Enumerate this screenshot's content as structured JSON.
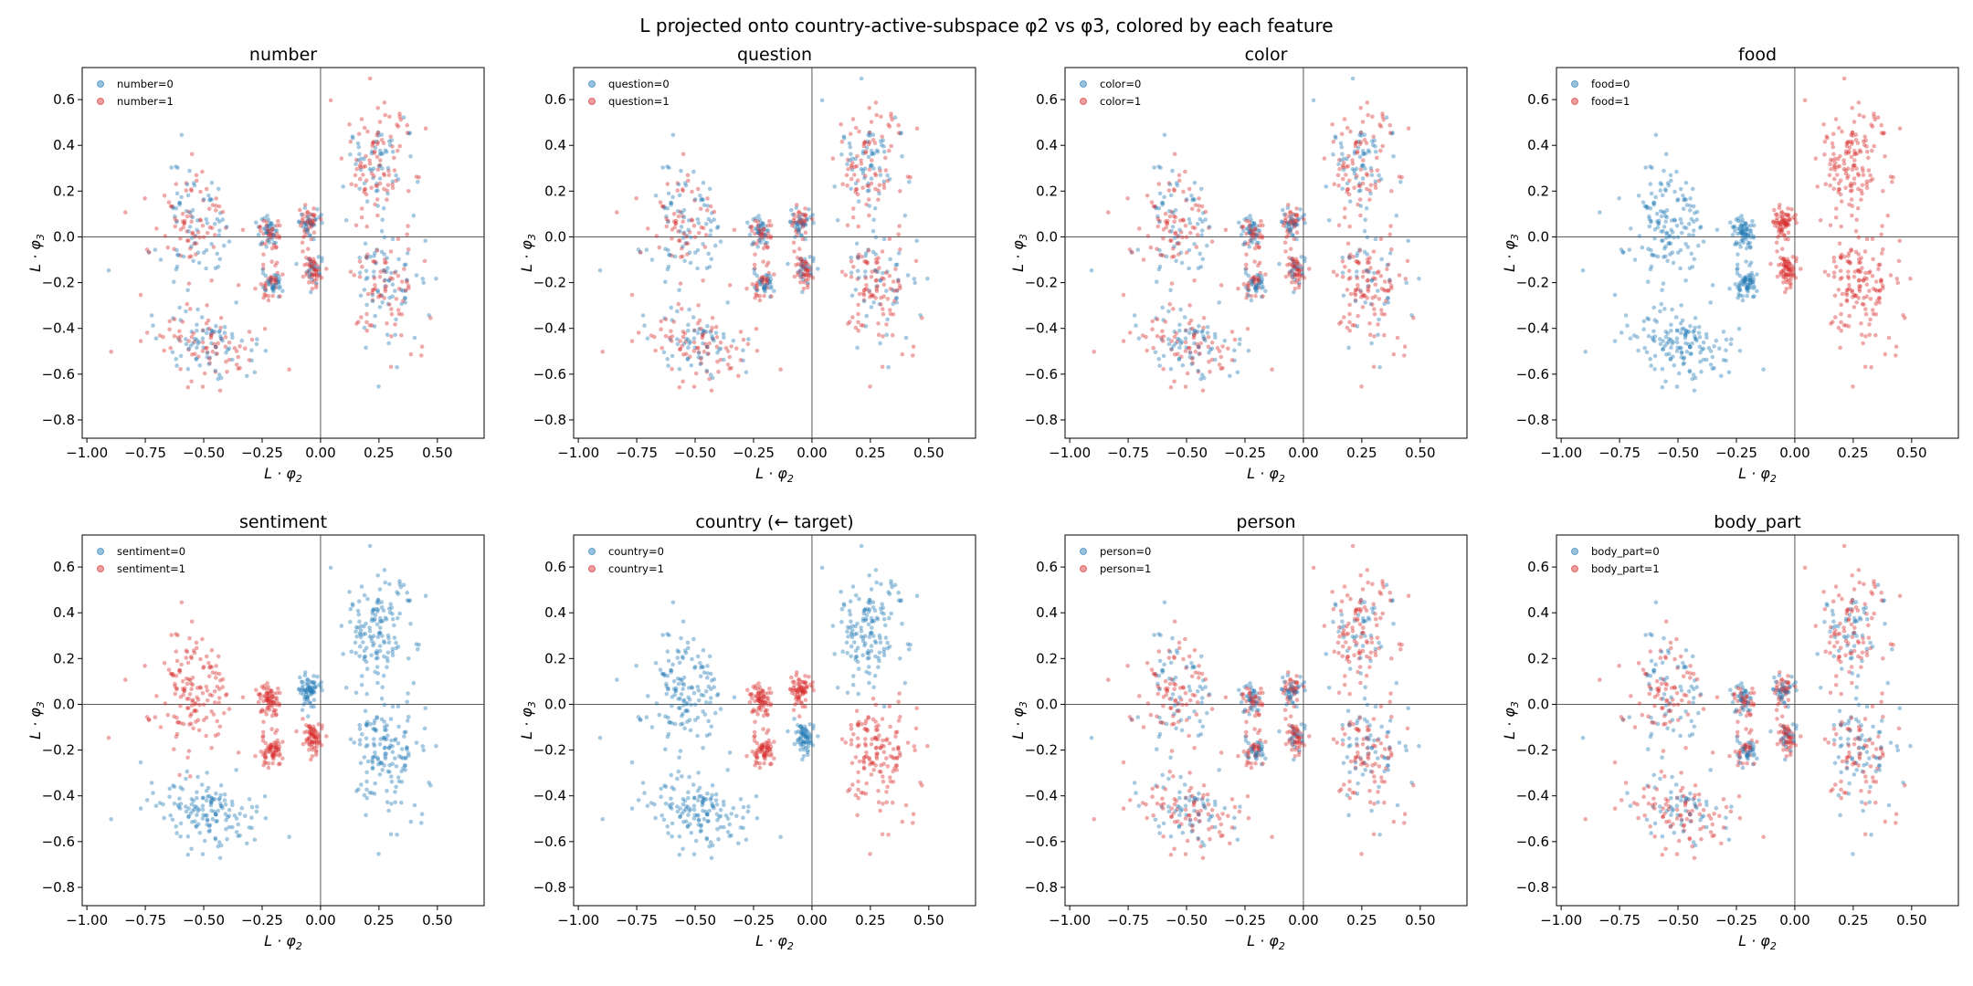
{
  "figure_title": "L projected onto country-active-subspace φ2 vs φ3, colored by each feature",
  "colors": {
    "class0": "#1f77b4",
    "class1": "#d62728",
    "axis": "#000000",
    "zero_line": "#444444"
  },
  "chart_data": [
    {
      "type": "scatter",
      "title": "number",
      "feature": "number",
      "legend": [
        "number=0",
        "number=1"
      ],
      "legend_position": "top-left",
      "xlabel": "L · φ2",
      "ylabel": "L · φ3",
      "xlim": [
        -1.02,
        0.7
      ],
      "ylim": [
        -0.88,
        0.74
      ],
      "xticks": [
        "-1.00",
        "-0.75",
        "-0.50",
        "-0.25",
        "0.00",
        "0.25",
        "0.50"
      ],
      "yticks": [
        "0.6",
        "0.4",
        "0.2",
        "0.0",
        "-0.2",
        "-0.4",
        "-0.6",
        "-0.8"
      ],
      "reference_lines": {
        "x": 0,
        "y": 0
      },
      "grid": false,
      "fraction_class1_by_cluster": [
        0.55,
        0.5,
        0.5,
        0.5,
        0.5,
        0.6,
        0.55,
        0.55
      ]
    },
    {
      "type": "scatter",
      "title": "question",
      "feature": "question",
      "legend": [
        "question=0",
        "question=1"
      ],
      "legend_position": "top-left",
      "xlabel": "L · φ2",
      "ylabel": "L · φ3",
      "xlim": [
        -1.02,
        0.7
      ],
      "ylim": [
        -0.88,
        0.74
      ],
      "xticks": [
        "-1.00",
        "-0.75",
        "-0.50",
        "-0.25",
        "0.00",
        "0.25",
        "0.50"
      ],
      "yticks": [
        "0.6",
        "0.4",
        "0.2",
        "0.0",
        "-0.2",
        "-0.4",
        "-0.6",
        "-0.8"
      ],
      "reference_lines": {
        "x": 0,
        "y": 0
      },
      "grid": false,
      "fraction_class1_by_cluster": [
        0.5,
        0.55,
        0.45,
        0.6,
        0.5,
        0.5,
        0.55,
        0.5
      ]
    },
    {
      "type": "scatter",
      "title": "color",
      "feature": "color",
      "legend": [
        "color=0",
        "color=1"
      ],
      "legend_position": "top-left",
      "xlabel": "L · φ2",
      "ylabel": "L · φ3",
      "xlim": [
        -1.02,
        0.7
      ],
      "ylim": [
        -0.88,
        0.74
      ],
      "xticks": [
        "-1.00",
        "-0.75",
        "-0.50",
        "-0.25",
        "0.00",
        "0.25",
        "0.50"
      ],
      "yticks": [
        "0.6",
        "0.4",
        "0.2",
        "0.0",
        "-0.2",
        "-0.4",
        "-0.6",
        "-0.8"
      ],
      "reference_lines": {
        "x": 0,
        "y": 0
      },
      "grid": false,
      "fraction_class1_by_cluster": [
        0.5,
        0.5,
        0.55,
        0.65,
        0.45,
        0.55,
        0.5,
        0.55
      ]
    },
    {
      "type": "scatter",
      "title": "food",
      "feature": "food",
      "legend": [
        "food=0",
        "food=1"
      ],
      "legend_position": "top-left",
      "xlabel": "L · φ2",
      "ylabel": "L · φ3",
      "xlim": [
        -1.02,
        0.7
      ],
      "ylim": [
        -0.88,
        0.74
      ],
      "xticks": [
        "-1.00",
        "-0.75",
        "-0.50",
        "-0.25",
        "0.00",
        "0.25",
        "0.50"
      ],
      "yticks": [
        "0.6",
        "0.4",
        "0.2",
        "0.0",
        "-0.2",
        "-0.4",
        "-0.6",
        "-0.8"
      ],
      "reference_lines": {
        "x": 0,
        "y": 0
      },
      "grid": false,
      "fraction_class1_by_cluster": [
        1,
        0,
        0,
        1,
        0,
        1,
        0,
        1
      ]
    },
    {
      "type": "scatter",
      "title": "sentiment",
      "feature": "sentiment",
      "legend": [
        "sentiment=0",
        "sentiment=1"
      ],
      "legend_position": "top-left",
      "xlabel": "L · φ2",
      "ylabel": "L · φ3",
      "xlim": [
        -1.02,
        0.7
      ],
      "ylim": [
        -0.88,
        0.74
      ],
      "xticks": [
        "-1.00",
        "-0.75",
        "-0.50",
        "-0.25",
        "0.00",
        "0.25",
        "0.50"
      ],
      "yticks": [
        "0.6",
        "0.4",
        "0.2",
        "0.0",
        "-0.2",
        "-0.4",
        "-0.6",
        "-0.8"
      ],
      "reference_lines": {
        "x": 0,
        "y": 0
      },
      "grid": false,
      "fraction_class1_by_cluster": [
        0,
        0,
        1,
        0,
        1,
        0,
        1,
        1
      ]
    },
    {
      "type": "scatter",
      "title": "country (← target)",
      "feature": "country",
      "legend": [
        "country=0",
        "country=1"
      ],
      "legend_position": "top-left",
      "xlabel": "L · φ2",
      "ylabel": "L · φ3",
      "xlim": [
        -1.02,
        0.7
      ],
      "ylim": [
        -0.88,
        0.74
      ],
      "xticks": [
        "-1.00",
        "-0.75",
        "-0.50",
        "-0.25",
        "0.00",
        "0.25",
        "0.50"
      ],
      "yticks": [
        "0.6",
        "0.4",
        "0.2",
        "0.0",
        "-0.2",
        "-0.4",
        "-0.6",
        "-0.8"
      ],
      "reference_lines": {
        "x": 0,
        "y": 0
      },
      "grid": false,
      "fraction_class1_by_cluster": [
        0,
        0,
        0,
        1,
        1,
        1,
        1,
        0
      ]
    },
    {
      "type": "scatter",
      "title": "person",
      "feature": "person",
      "legend": [
        "person=0",
        "person=1"
      ],
      "legend_position": "top-left",
      "xlabel": "L · φ2",
      "ylabel": "L · φ3",
      "xlim": [
        -1.02,
        0.7
      ],
      "ylim": [
        -0.88,
        0.74
      ],
      "xticks": [
        "-1.00",
        "-0.75",
        "-0.50",
        "-0.25",
        "0.00",
        "0.25",
        "0.50"
      ],
      "yticks": [
        "0.6",
        "0.4",
        "0.2",
        "0.0",
        "-0.2",
        "-0.4",
        "-0.6",
        "-0.8"
      ],
      "reference_lines": {
        "x": 0,
        "y": 0
      },
      "grid": false,
      "fraction_class1_by_cluster": [
        0.6,
        0.55,
        0.6,
        0.55,
        0.55,
        0.5,
        0.6,
        0.6
      ]
    },
    {
      "type": "scatter",
      "title": "body_part",
      "feature": "body_part",
      "legend": [
        "body_part=0",
        "body_part=1"
      ],
      "legend_position": "top-left",
      "xlabel": "L · φ2",
      "ylabel": "L · φ3",
      "xlim": [
        -1.02,
        0.7
      ],
      "ylim": [
        -0.88,
        0.74
      ],
      "xticks": [
        "-1.00",
        "-0.75",
        "-0.50",
        "-0.25",
        "0.00",
        "0.25",
        "0.50"
      ],
      "yticks": [
        "0.6",
        "0.4",
        "0.2",
        "0.0",
        "-0.2",
        "-0.4",
        "-0.6",
        "-0.8"
      ],
      "reference_lines": {
        "x": 0,
        "y": 0
      },
      "grid": false,
      "fraction_class1_by_cluster": [
        0.55,
        0.6,
        0.55,
        0.5,
        0.5,
        0.55,
        0.5,
        0.6
      ]
    }
  ],
  "clusters": [
    {
      "name": "top-right",
      "center": [
        0.24,
        0.33
      ],
      "spread": [
        0.09,
        0.12
      ],
      "tilt": -0.75,
      "count": 150
    },
    {
      "name": "bottom-left",
      "center": [
        -0.5,
        -0.47
      ],
      "spread": [
        0.12,
        0.075
      ],
      "tilt": -0.35,
      "count": 150
    },
    {
      "name": "left",
      "center": [
        -0.56,
        0.06
      ],
      "spread": [
        0.1,
        0.12
      ],
      "tilt": 0.45,
      "count": 150
    },
    {
      "name": "bottom-right",
      "center": [
        0.27,
        -0.22
      ],
      "spread": [
        0.09,
        0.12
      ],
      "tilt": 0.5,
      "count": 150
    },
    {
      "name": "small-upper-left",
      "center": [
        -0.22,
        0.02
      ],
      "spread": [
        0.025,
        0.035
      ],
      "tilt": 0,
      "count": 70
    },
    {
      "name": "small-upper-right",
      "center": [
        -0.05,
        0.06
      ],
      "spread": [
        0.025,
        0.035
      ],
      "tilt": 0,
      "count": 70
    },
    {
      "name": "small-lower-left",
      "center": [
        -0.21,
        -0.2
      ],
      "spread": [
        0.022,
        0.035
      ],
      "tilt": 0,
      "count": 70
    },
    {
      "name": "small-lower-right",
      "center": [
        -0.03,
        -0.15
      ],
      "spread": [
        0.022,
        0.035
      ],
      "tilt": 0,
      "count": 70
    }
  ]
}
